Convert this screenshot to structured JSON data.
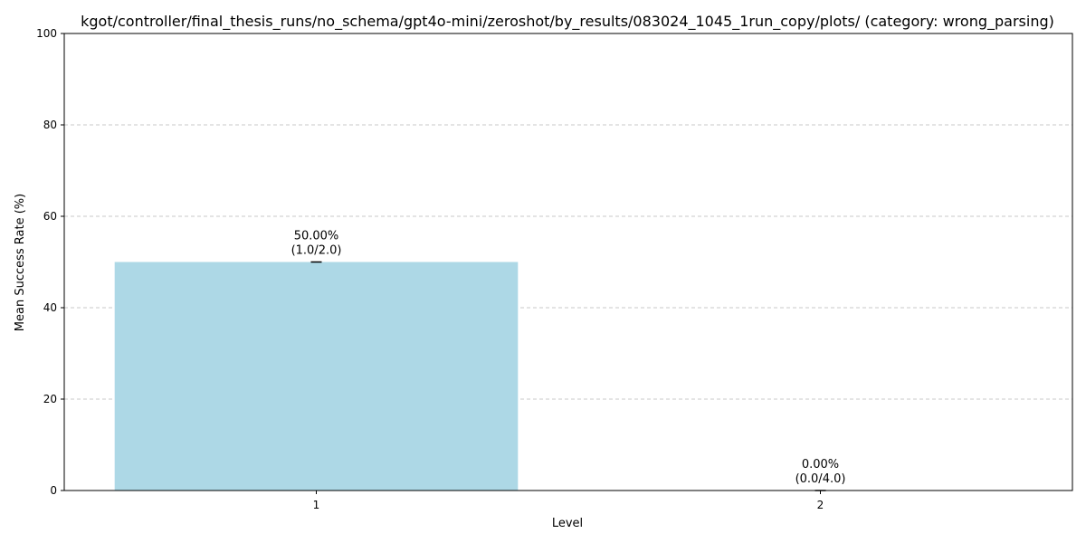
{
  "chart_data": {
    "type": "bar",
    "title": "kgot/controller/final_thesis_runs/no_schema/gpt4o-mini/zeroshot/by_results/083024_1045_1run_copy/plots/ (category: wrong_parsing)",
    "xlabel": "Level",
    "ylabel": "Mean Success Rate (%)",
    "categories": [
      "1",
      "2"
    ],
    "values": [
      50.0,
      0.0
    ],
    "value_labels": [
      "50.00%",
      "0.00%"
    ],
    "count_labels": [
      "(1.0/2.0)",
      "(0.0/4.0)"
    ],
    "ylim": [
      0,
      100
    ],
    "yticks": [
      0,
      20,
      40,
      60,
      80,
      100
    ],
    "ytick_labels": [
      "0",
      "20",
      "40",
      "60",
      "80",
      "100"
    ],
    "grid": "y, dashed",
    "legend": "none",
    "colors": {
      "bar": "#add8e6",
      "grid": "#c8c8c8",
      "axis": "#000000",
      "errorbar": "#000000"
    }
  }
}
